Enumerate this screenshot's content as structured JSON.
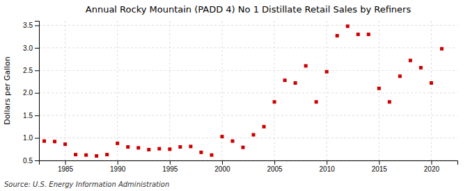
{
  "chart_data": {
    "type": "scatter",
    "title": "Annual Rocky Mountain (PADD 4) No 1 Distillate Retail Sales by Refiners",
    "ylabel": "Dollars per Gallon",
    "source": "Source: U.S. Energy Information Administration",
    "color": "#cc0000",
    "marker": "square",
    "grid": true,
    "xlim": [
      1982.5,
      2022.5
    ],
    "ylim": [
      0.5,
      3.6
    ],
    "xticks": [
      1985,
      1990,
      1995,
      2000,
      2005,
      2010,
      2015,
      2020
    ],
    "yticks": [
      0.5,
      {
        "value": 1.0,
        "label": "1.0"
      },
      1.5,
      {
        "value": 2.0,
        "label": "2.0"
      },
      2.5,
      {
        "value": 3.0,
        "label": "3.0"
      },
      3.5
    ],
    "x": [
      1983,
      1984,
      1985,
      1986,
      1987,
      1988,
      1989,
      1990,
      1991,
      1992,
      1993,
      1994,
      1995,
      1996,
      1997,
      1998,
      1999,
      2000,
      2001,
      2002,
      2003,
      2004,
      2005,
      2006,
      2007,
      2008,
      2009,
      2010,
      2011,
      2012,
      2013,
      2014,
      2015,
      2016,
      2017,
      2018,
      2019,
      2020,
      2021
    ],
    "values": [
      0.93,
      0.92,
      0.86,
      0.63,
      0.62,
      0.6,
      0.63,
      0.88,
      0.8,
      0.78,
      0.74,
      0.76,
      0.75,
      0.8,
      0.81,
      0.68,
      0.62,
      1.03,
      0.93,
      0.79,
      1.07,
      1.25,
      1.8,
      2.28,
      2.22,
      2.6,
      1.8,
      2.47,
      3.27,
      3.48,
      3.3,
      3.3,
      2.1,
      1.8,
      2.37,
      2.72,
      2.56,
      2.22,
      2.98
    ]
  }
}
